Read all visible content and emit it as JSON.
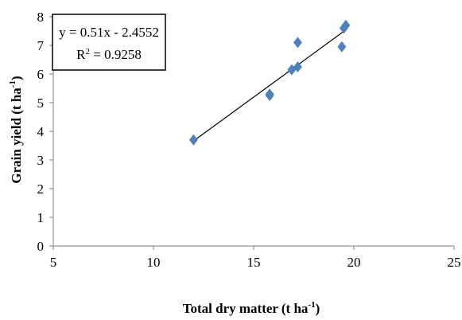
{
  "chart_data": {
    "type": "scatter",
    "xlabel": "Total dry matter (t ha",
    "xlabel_sup": "-1",
    "xlabel_end": ")",
    "ylabel": "Grain yield (t ha",
    "ylabel_sup": "-1",
    "ylabel_end": ")",
    "xlim": [
      5,
      25
    ],
    "ylim": [
      0,
      8
    ],
    "x_ticks": [
      "5",
      "10",
      "15",
      "20",
      "25"
    ],
    "y_ticks": [
      "0",
      "1",
      "2",
      "3",
      "4",
      "5",
      "6",
      "7",
      "8"
    ],
    "grid": false,
    "legend": "none",
    "marker_color": "#4f81bd",
    "points": [
      {
        "x": 12.0,
        "y": 3.7
      },
      {
        "x": 15.8,
        "y": 5.3
      },
      {
        "x": 15.8,
        "y": 5.25
      },
      {
        "x": 16.9,
        "y": 6.15
      },
      {
        "x": 17.2,
        "y": 6.25
      },
      {
        "x": 17.2,
        "y": 7.1
      },
      {
        "x": 19.4,
        "y": 6.95
      },
      {
        "x": 19.5,
        "y": 7.6
      },
      {
        "x": 19.6,
        "y": 7.7
      }
    ],
    "trendline": {
      "slope": 0.51,
      "intercept": -2.4552,
      "x_range": [
        12.0,
        19.6
      ],
      "color": "#000000"
    },
    "equation_text": "y = 0.51x - 2.4552",
    "r2_label": "R",
    "r2_sup": "2",
    "r2_value": " = 0.9258"
  }
}
